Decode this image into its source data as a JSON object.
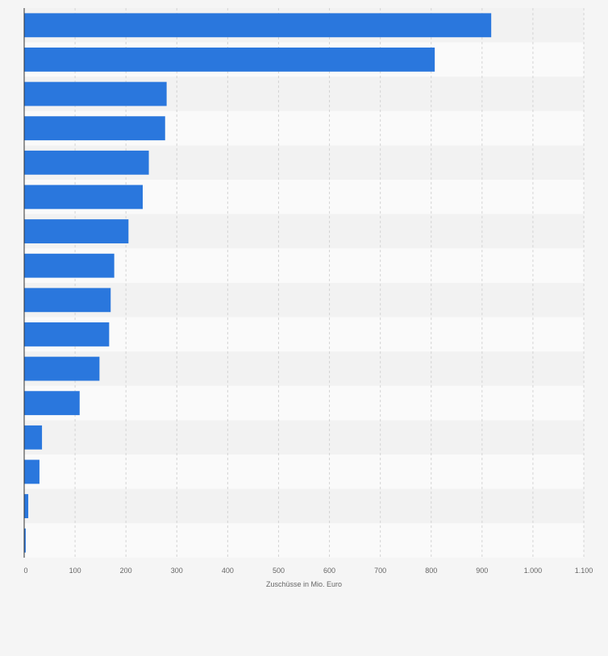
{
  "chart_data": {
    "type": "bar",
    "orientation": "horizontal",
    "title": "",
    "xlabel": "Zuschüsse in Mio. Euro",
    "ylabel": "",
    "categories": [
      "",
      "",
      "",
      "",
      "",
      "",
      "",
      "",
      "",
      "",
      "",
      "",
      "",
      "",
      "",
      ""
    ],
    "values": [
      918,
      807,
      280,
      277,
      245,
      233,
      205,
      177,
      170,
      167,
      148,
      109,
      35,
      30,
      8,
      3
    ],
    "xlim": [
      0,
      1100
    ],
    "ticks": [
      0,
      100,
      200,
      300,
      400,
      500,
      600,
      700,
      800,
      900,
      1000,
      1100
    ],
    "tick_labels": [
      "0",
      "100",
      "200",
      "300",
      "400",
      "500",
      "600",
      "700",
      "800",
      "900",
      "1.000",
      "1.100"
    ],
    "grid": true,
    "colors": {
      "bar": "#2a77dd",
      "band_dark": "#f2f2f2",
      "band_light": "#fafafa",
      "grid": "#d4d4d4",
      "axis": "#333333",
      "tick_text": "#666666",
      "background": "#f5f5f5"
    }
  }
}
